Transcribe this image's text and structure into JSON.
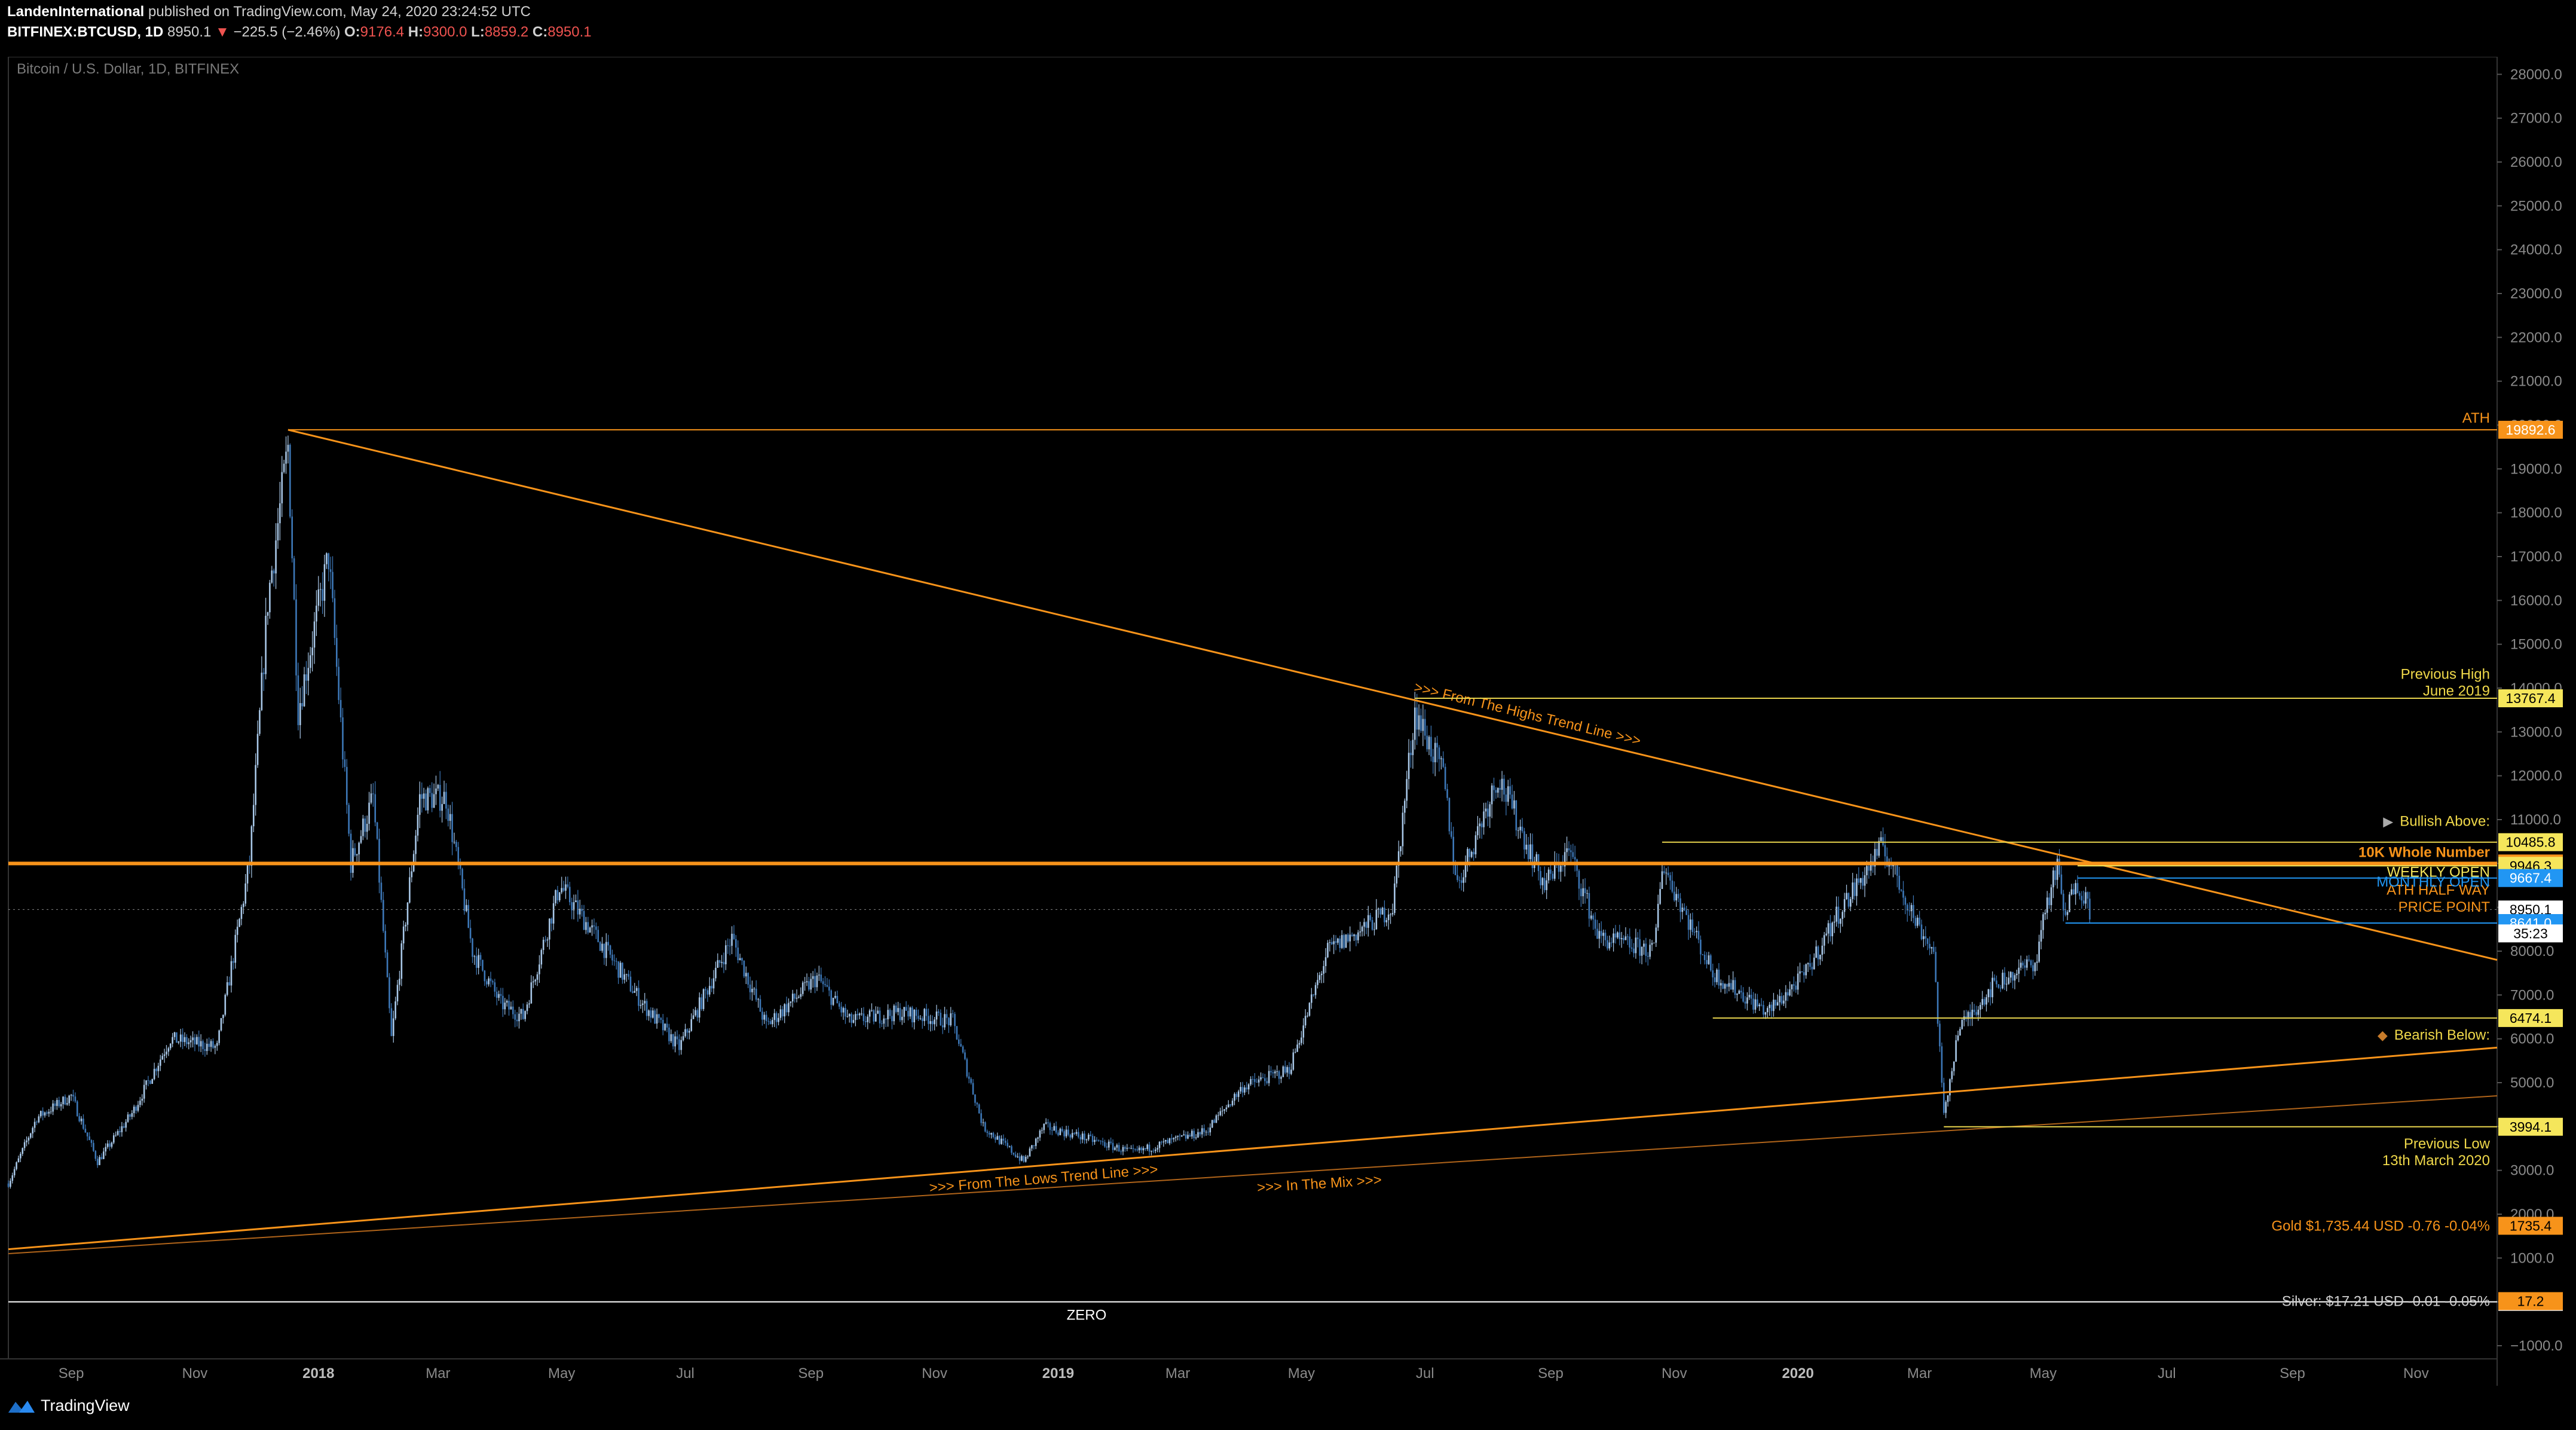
{
  "header": {
    "publisher": "LandenInternational",
    "published_text": "published on TradingView.com, May 24, 2020 23:24:52 UTC",
    "symbol": "BITFINEX:BTCUSD, 1D",
    "price": "8950.1",
    "change": "−225.5 (−2.46%)",
    "o_label": "O:",
    "o": "9176.4",
    "h_label": "H:",
    "h": "9300.0",
    "l_label": "L:",
    "l": "8859.2",
    "c_label": "C:",
    "c": "8950.1"
  },
  "footer": {
    "brand": "TradingView",
    "logo_icon": "tradingview-logo-icon"
  },
  "colors": {
    "background": "#000000",
    "orange": "#f7931a",
    "yellow": "#f0e05a",
    "blue": "#2196f3",
    "candle": "#8fb3d9",
    "axis_text": "#8a8a8a"
  },
  "chart_data": {
    "type": "candlestick",
    "title": "Bitcoin / U.S. Dollar, 1D, BITFINEX",
    "y_ticks": [
      -1000,
      0,
      1000,
      2000,
      3000,
      4000,
      5000,
      6000,
      7000,
      8000,
      9000,
      10000,
      11000,
      12000,
      13000,
      14000,
      15000,
      16000,
      17000,
      18000,
      19000,
      20000,
      21000,
      22000,
      23000,
      24000,
      25000,
      26000,
      27000,
      28000
    ],
    "ylim": [
      -1300,
      28400
    ],
    "y_tick_decimals": 1,
    "x_ticks": [
      "Sep",
      "Nov",
      "2018",
      "Mar",
      "May",
      "Jul",
      "Sep",
      "Nov",
      "2019",
      "Mar",
      "May",
      "Jul",
      "Sep",
      "Nov",
      "2020",
      "Mar",
      "May",
      "Jul",
      "Sep",
      "Nov"
    ],
    "x_range": [
      "2017-08-01",
      "2020-12-11"
    ],
    "bold_ticks": [
      "2018",
      "2019",
      "2020"
    ],
    "price_series": {
      "name": "BTCUSD",
      "keypoints": [
        [
          "2017-08-01",
          2700
        ],
        [
          "2017-08-15",
          4200
        ],
        [
          "2017-09-01",
          4700
        ],
        [
          "2017-09-14",
          3200
        ],
        [
          "2017-10-01",
          4300
        ],
        [
          "2017-10-20",
          6000
        ],
        [
          "2017-11-12",
          5800
        ],
        [
          "2017-11-28",
          10000
        ],
        [
          "2017-12-07",
          16000
        ],
        [
          "2017-12-17",
          19500
        ],
        [
          "2017-12-22",
          13500
        ],
        [
          "2018-01-06",
          17000
        ],
        [
          "2018-01-17",
          10000
        ],
        [
          "2018-01-28",
          11500
        ],
        [
          "2018-02-06",
          6000
        ],
        [
          "2018-02-20",
          11500
        ],
        [
          "2018-03-05",
          11500
        ],
        [
          "2018-03-18",
          8000
        ],
        [
          "2018-04-01",
          6800
        ],
        [
          "2018-04-12",
          6500
        ],
        [
          "2018-04-30",
          9500
        ],
        [
          "2018-05-20",
          8200
        ],
        [
          "2018-06-10",
          6800
        ],
        [
          "2018-06-28",
          5800
        ],
        [
          "2018-07-24",
          8300
        ],
        [
          "2018-08-10",
          6300
        ],
        [
          "2018-09-04",
          7400
        ],
        [
          "2018-09-20",
          6400
        ],
        [
          "2018-10-15",
          6600
        ],
        [
          "2018-11-10",
          6400
        ],
        [
          "2018-11-25",
          4000
        ],
        [
          "2018-12-15",
          3200
        ],
        [
          "2018-12-25",
          4000
        ],
        [
          "2019-01-10",
          3800
        ],
        [
          "2019-02-07",
          3400
        ],
        [
          "2019-03-15",
          3900
        ],
        [
          "2019-04-02",
          4900
        ],
        [
          "2019-04-25",
          5300
        ],
        [
          "2019-05-14",
          8000
        ],
        [
          "2019-05-31",
          8500
        ],
        [
          "2019-06-15",
          9000
        ],
        [
          "2019-06-26",
          13500
        ],
        [
          "2019-07-10",
          12000
        ],
        [
          "2019-07-17",
          9500
        ],
        [
          "2019-08-06",
          12000
        ],
        [
          "2019-08-29",
          9500
        ],
        [
          "2019-09-10",
          10300
        ],
        [
          "2019-09-25",
          8300
        ],
        [
          "2019-10-22",
          8000
        ],
        [
          "2019-10-26",
          10000
        ],
        [
          "2019-11-20",
          7500
        ],
        [
          "2019-12-17",
          6600
        ],
        [
          "2020-01-05",
          7500
        ],
        [
          "2020-01-20",
          8800
        ],
        [
          "2020-02-12",
          10400
        ],
        [
          "2020-02-28",
          8700
        ],
        [
          "2020-03-08",
          8000
        ],
        [
          "2020-03-13",
          4200
        ],
        [
          "2020-03-20",
          6200
        ],
        [
          "2020-04-06",
          7200
        ],
        [
          "2020-04-28",
          7800
        ],
        [
          "2020-05-01",
          8800
        ],
        [
          "2020-05-08",
          9900
        ],
        [
          "2020-05-12",
          8700
        ],
        [
          "2020-05-17",
          9700
        ],
        [
          "2020-05-24",
          8950
        ]
      ]
    },
    "horizontal_levels": [
      {
        "price": 19892.6,
        "label": "ATH",
        "tag": "19892.6",
        "color": "#f7931a",
        "tag_bg": "#f7931a",
        "start": "2017-12-17",
        "width": 2
      },
      {
        "price": 13767.4,
        "label": "Previous High",
        "label2": "June 2019",
        "tag": "13767.4",
        "color": "#e8d44d",
        "tag_bg": "#f5e65b",
        "start": "2019-06-26",
        "width": 2
      },
      {
        "price": 10485.8,
        "label": "Bullish Above:",
        "label_icon": "bull-icon",
        "tag": "10485.8",
        "color": "#e8d44d",
        "tag_bg": "#f5e65b",
        "start": "2019-10-26",
        "width": 2
      },
      {
        "price": 10000.0,
        "label": "10K Whole Number",
        "tag": "10000.0",
        "color": "#f7931a",
        "tag_bg": "#f7931a",
        "start": "2017-08-01",
        "width": 6
      },
      {
        "price": 9946.3,
        "label": "WEEKLY OPEN",
        "tag": "9946.3",
        "color": "#f5e65b",
        "tag_bg": "#f5e65b",
        "start": "2020-05-18",
        "width": 2
      },
      {
        "price": 9946.3,
        "label": "ATH HALF WAY",
        "tag": "",
        "color": "#f7931a",
        "tag_bg": "#f7931a",
        "start": "2020-05-18",
        "width": 0
      },
      {
        "price": 9946.3,
        "label": "PRICE POINT",
        "tag": "",
        "color": "#f7931a",
        "tag_bg": "#f7931a",
        "start": "2020-05-18",
        "width": 0
      },
      {
        "price": 9667.4,
        "label": "MONTHLY OPEN",
        "tag": "9667.4",
        "color": "#2196f3",
        "tag_bg": "#2196f3",
        "start": "2020-05-18",
        "width": 2
      },
      {
        "price": 8950.1,
        "label": "",
        "tag": "8950.1",
        "color": "#888888",
        "tag_bg": "#ffffff",
        "start": "2017-08-01",
        "width": 1
      },
      {
        "price": 8641.0,
        "label": "",
        "tag": "8641.0",
        "color": "#2196f3",
        "tag_bg": "#2196f3",
        "start": "2020-05-12",
        "width": 2
      },
      {
        "price": 6474.1,
        "label": "Bearish Below:",
        "label_icon": "bear-icon",
        "tag": "6474.1",
        "color": "#e8d44d",
        "tag_bg": "#f5e65b",
        "start": "2019-11-20",
        "width": 2
      },
      {
        "price": 3994.1,
        "label": "Previous Low",
        "label2": "13th March 2020",
        "tag": "3994.1",
        "color": "#e8d44d",
        "tag_bg": "#f5e65b",
        "start": "2020-03-13",
        "width": 2
      },
      {
        "price": 0.0,
        "label": "ZERO",
        "tag": "0.0",
        "color": "#ffffff",
        "tag_bg": "#ffffff",
        "start": "2017-08-01",
        "width": 2
      }
    ],
    "countdown": "35:23",
    "trend_lines": [
      {
        "name": "highs",
        "from": [
          "2017-12-17",
          19892
        ],
        "to": [
          "2020-12-11",
          7800
        ],
        "label": ">>> From The Highs Trend Line >>>",
        "color": "#f7931a"
      },
      {
        "name": "lows",
        "from": [
          "2017-08-01",
          1200
        ],
        "to": [
          "2020-12-11",
          5800
        ],
        "label": ">>> From The Lows Trend Line >>>",
        "color": "#f7931a"
      },
      {
        "name": "mix",
        "from": [
          "2017-08-01",
          1100
        ],
        "to": [
          "2020-12-11",
          4700
        ],
        "label": ">>> In The Mix >>>",
        "color": "#b0641a"
      }
    ],
    "annotations": [
      {
        "text": "Gold  $1,735.44 USD -0.76 -0.04%",
        "price": 1735.4,
        "tag": "1735.4",
        "color": "#f7931a",
        "tag_bg": "#f7931a"
      },
      {
        "text": "Silver: $17.21 USD -0.01 -0.05%",
        "price": 17.2,
        "tag": "17.2",
        "color": "#d0d0d0",
        "tag_bg": "#f7931a"
      }
    ]
  }
}
